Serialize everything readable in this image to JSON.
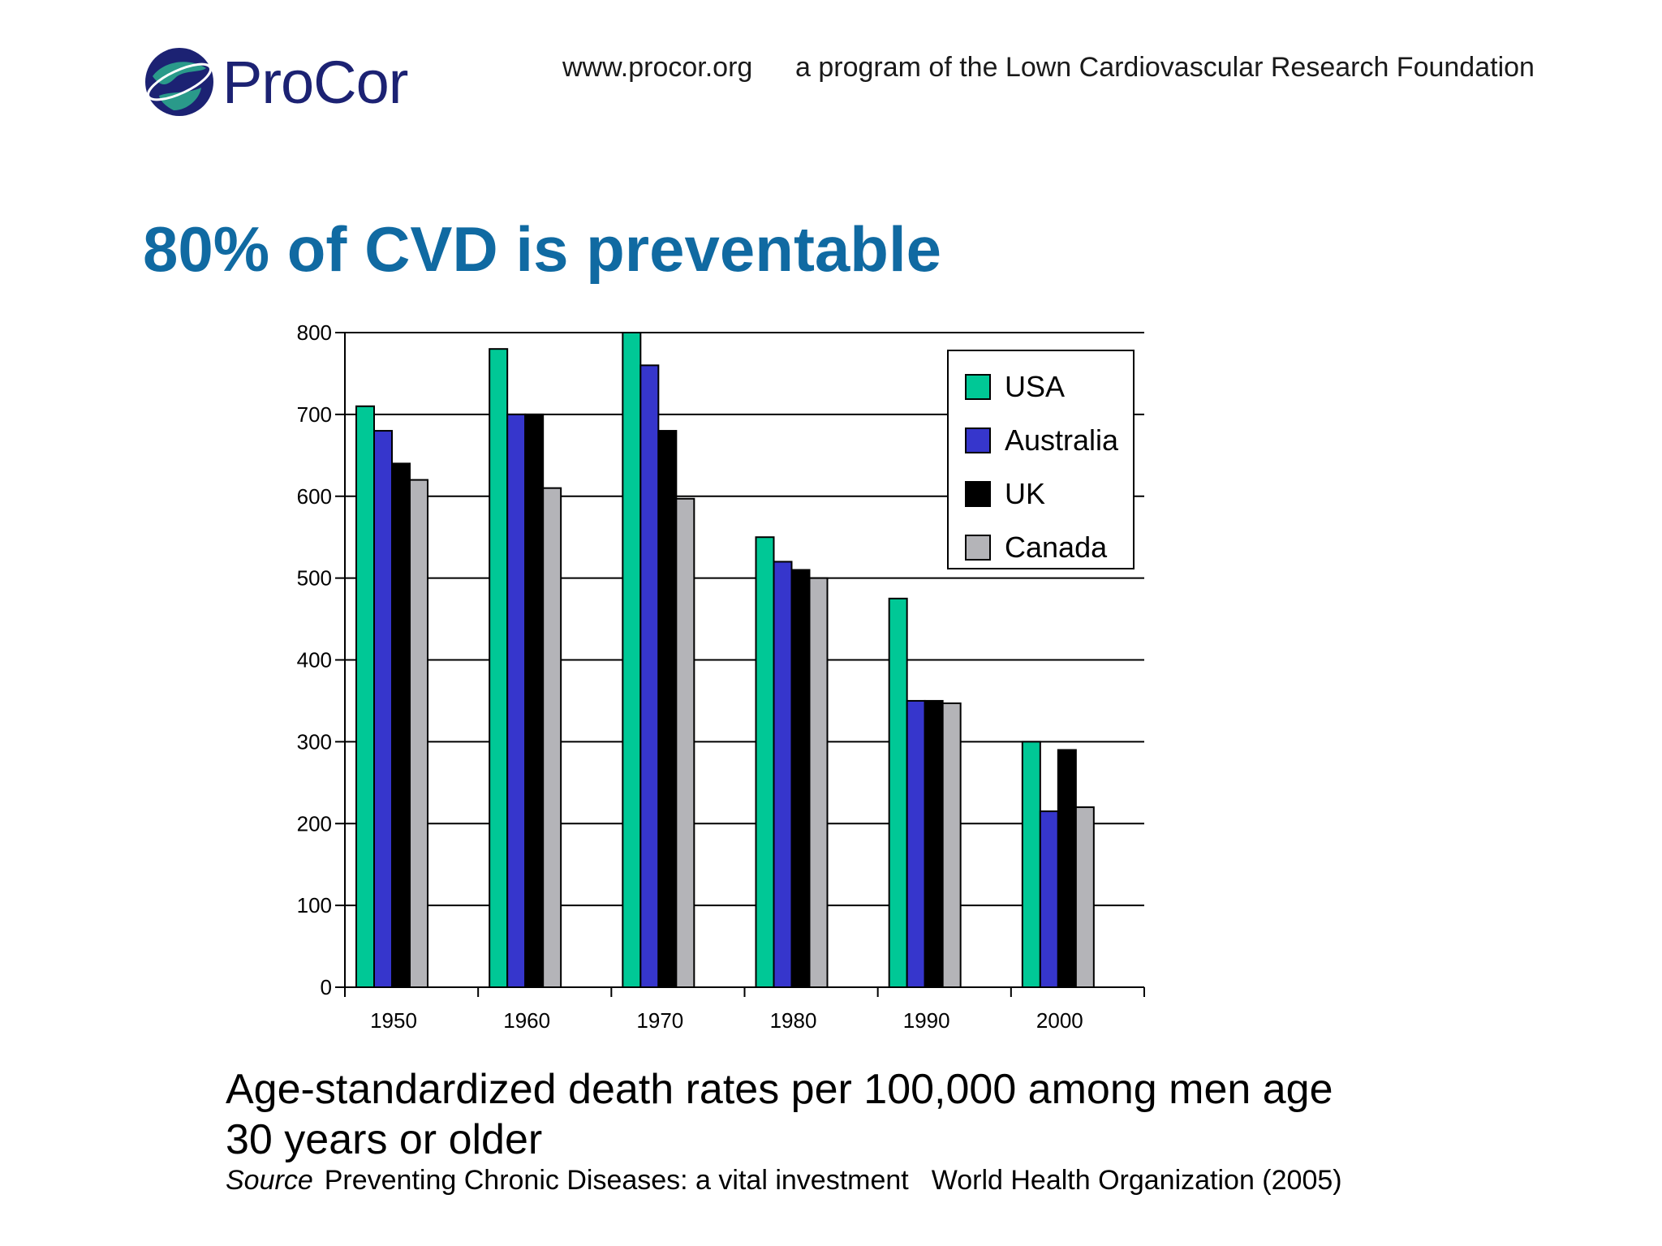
{
  "header": {
    "logo_text": "ProCor",
    "url": "www.procor.org",
    "tagline": "a program of the Lown Cardiovascular Research Foundation"
  },
  "slide": {
    "title": "80% of CVD is preventable",
    "caption": "Age-standardized death rates per 100,000 among men age 30 years or older",
    "source_label": "Source",
    "source_text": "Preventing Chronic Diseases: a vital investment",
    "source_org": "World Health Organization (2005)"
  },
  "chart_data": {
    "type": "bar",
    "title": "",
    "xlabel": "",
    "ylabel": "",
    "categories": [
      "1950",
      "1960",
      "1970",
      "1980",
      "1990",
      "2000"
    ],
    "series": [
      {
        "name": "USA",
        "color": "#00c896",
        "values": [
          710,
          780,
          800,
          550,
          475,
          300
        ]
      },
      {
        "name": "Australia",
        "color": "#3636cc",
        "values": [
          680,
          700,
          760,
          520,
          350,
          215
        ]
      },
      {
        "name": "UK",
        "color": "#000000",
        "values": [
          640,
          700,
          680,
          510,
          350,
          290
        ]
      },
      {
        "name": "Canada",
        "color": "#b4b4b8",
        "values": [
          620,
          610,
          597,
          500,
          347,
          220
        ]
      }
    ],
    "ylim": [
      0,
      800
    ],
    "yticks": [
      0,
      100,
      200,
      300,
      400,
      500,
      600,
      700,
      800
    ],
    "grid": true,
    "legend": "top-right"
  },
  "colors": {
    "title": "#106aa2",
    "logo": "#1c2273"
  }
}
